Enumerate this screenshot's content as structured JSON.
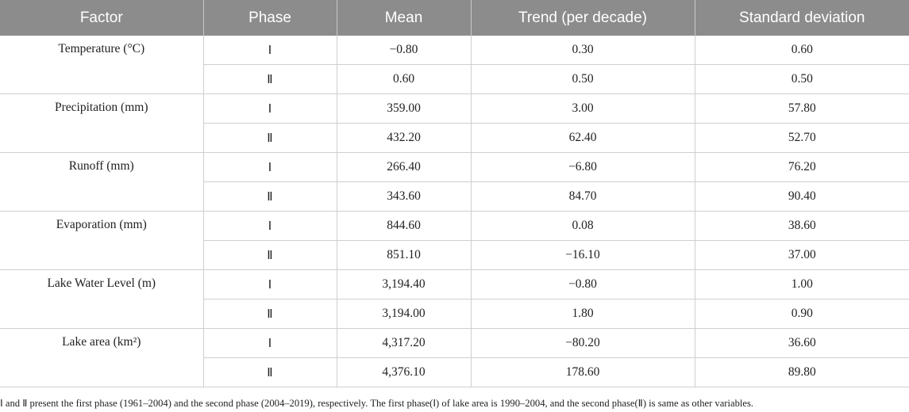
{
  "headers": [
    "Factor",
    "Phase",
    "Mean",
    "Trend (per decade)",
    "Standard deviation"
  ],
  "groups": [
    {
      "factor": "Temperature (°C)",
      "rows": [
        {
          "phase": "Ⅰ",
          "mean": "−0.80",
          "trend": "0.30",
          "sd": "0.60"
        },
        {
          "phase": "Ⅱ",
          "mean": "0.60",
          "trend": "0.50",
          "sd": "0.50"
        }
      ]
    },
    {
      "factor": "Precipitation (mm)",
      "rows": [
        {
          "phase": "Ⅰ",
          "mean": "359.00",
          "trend": "3.00",
          "sd": "57.80"
        },
        {
          "phase": "Ⅱ",
          "mean": "432.20",
          "trend": "62.40",
          "sd": "52.70"
        }
      ]
    },
    {
      "factor": "Runoff (mm)",
      "rows": [
        {
          "phase": "Ⅰ",
          "mean": "266.40",
          "trend": "−6.80",
          "sd": "76.20"
        },
        {
          "phase": "Ⅱ",
          "mean": "343.60",
          "trend": "84.70",
          "sd": "90.40"
        }
      ]
    },
    {
      "factor": "Evaporation (mm)",
      "rows": [
        {
          "phase": "Ⅰ",
          "mean": "844.60",
          "trend": "0.08",
          "sd": "38.60"
        },
        {
          "phase": "Ⅱ",
          "mean": "851.10",
          "trend": "−16.10",
          "sd": "37.00"
        }
      ]
    },
    {
      "factor": "Lake Water Level (m)",
      "rows": [
        {
          "phase": "Ⅰ",
          "mean": "3,194.40",
          "trend": "−0.80",
          "sd": "1.00"
        },
        {
          "phase": "Ⅱ",
          "mean": "3,194.00",
          "trend": "1.80",
          "sd": "0.90"
        }
      ]
    },
    {
      "factor": "Lake area (km²)",
      "rows": [
        {
          "phase": "Ⅰ",
          "mean": "4,317.20",
          "trend": "−80.20",
          "sd": "36.60"
        },
        {
          "phase": "Ⅱ",
          "mean": "4,376.10",
          "trend": "178.60",
          "sd": "89.80"
        }
      ]
    }
  ],
  "footnote": "Ⅰ and Ⅱ present the first phase (1961–2004) and the second phase (2004–2019), respectively. The first phase(Ⅰ) of lake area is 1990–2004, and the second phase(Ⅱ) is same as other variables."
}
